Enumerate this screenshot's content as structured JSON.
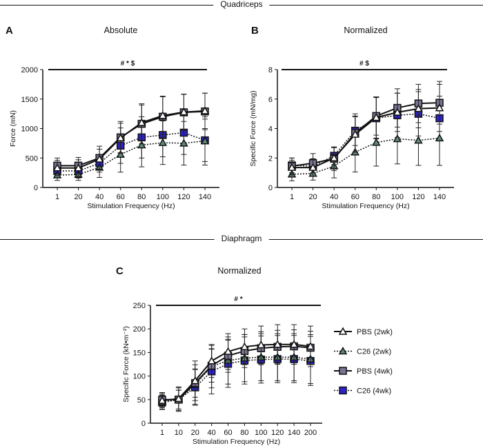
{
  "sections": {
    "top": "Quadriceps",
    "bottom": "Diaphragm"
  },
  "legend": [
    {
      "label": "PBS (2wk)",
      "marker": "triangle",
      "fill": "#ffffff",
      "dash": false
    },
    {
      "label": "C26 (2wk)",
      "marker": "triangle",
      "fill": "#5f8c7c",
      "dash": true
    },
    {
      "label": "PBS (4wk)",
      "marker": "square",
      "fill": "#7b7391",
      "dash": false
    },
    {
      "label": "C26 (4wk)",
      "marker": "square",
      "fill": "#2b22c9",
      "dash": true
    }
  ],
  "chart_data": [
    {
      "panel": "A",
      "title": "Absolute",
      "type": "line",
      "significance": "# * $",
      "xlabel": "Stimulation Frequency (Hz)",
      "ylabel": "Force (mN)",
      "categories": [
        "1",
        "20",
        "40",
        "60",
        "80",
        "100",
        "120",
        "140"
      ],
      "ylim": [
        0,
        2000
      ],
      "yticks": [
        0,
        500,
        1000,
        1500,
        2000
      ],
      "series": [
        {
          "name": "PBS (2wk)",
          "values": [
            330,
            330,
            480,
            840,
            1100,
            1220,
            1280,
            1300
          ],
          "err": [
            130,
            140,
            170,
            250,
            300,
            320,
            300,
            300
          ]
        },
        {
          "name": "C26 (2wk)",
          "values": [
            210,
            220,
            340,
            560,
            720,
            760,
            750,
            790
          ],
          "err": [
            90,
            100,
            170,
            300,
            370,
            370,
            370,
            410
          ]
        },
        {
          "name": "PBS (4wk)",
          "values": [
            370,
            370,
            500,
            850,
            1080,
            1200,
            1275,
            1290
          ],
          "err": [
            130,
            140,
            200,
            270,
            340,
            350,
            310,
            310
          ]
        },
        {
          "name": "C26 (4wk)",
          "values": [
            280,
            280,
            410,
            710,
            850,
            890,
            930,
            800
          ],
          "err": [
            110,
            120,
            150,
            300,
            350,
            370,
            370,
            360
          ]
        }
      ]
    },
    {
      "panel": "B",
      "title": "Normalized",
      "type": "line",
      "significance": "# $",
      "xlabel": "Stimulation Frequency (Hz)",
      "ylabel": "Specific Force (mN/mg)",
      "categories": [
        "1",
        "20",
        "40",
        "60",
        "80",
        "100",
        "120",
        "140"
      ],
      "ylim": [
        0,
        8
      ],
      "yticks": [
        0,
        2,
        4,
        6,
        8
      ],
      "series": [
        {
          "name": "PBS (2wk)",
          "values": [
            1.35,
            1.35,
            2.0,
            3.6,
            4.75,
            5.1,
            5.35,
            5.4
          ],
          "err": [
            0.5,
            0.6,
            0.7,
            1.2,
            1.4,
            1.3,
            1.3,
            1.6
          ]
        },
        {
          "name": "C26 (2wk)",
          "values": [
            0.9,
            0.95,
            1.45,
            2.4,
            3.05,
            3.3,
            3.2,
            3.35
          ],
          "err": [
            0.45,
            0.45,
            0.8,
            1.35,
            1.6,
            1.7,
            1.7,
            1.85
          ]
        },
        {
          "name": "PBS (4wk)",
          "values": [
            1.45,
            1.65,
            1.95,
            3.7,
            4.85,
            5.4,
            5.7,
            5.75
          ],
          "err": [
            0.55,
            0.65,
            0.8,
            1.3,
            1.3,
            1.3,
            1.3,
            1.45
          ]
        },
        {
          "name": "C26 (4wk)",
          "values": [
            1.5,
            1.45,
            2.15,
            3.85,
            4.7,
            4.9,
            5.0,
            4.7
          ],
          "err": [
            0.5,
            0.5,
            0.6,
            1.0,
            1.4,
            1.5,
            1.5,
            1.5
          ]
        }
      ]
    },
    {
      "panel": "C",
      "title": "Normalized",
      "type": "line",
      "significance": "# *",
      "xlabel": "Stimulation Frequency (Hz)",
      "ylabel": "Specific Force  (kN•m⁻²)",
      "categories": [
        "1",
        "10",
        "20",
        "40",
        "60",
        "80",
        "100",
        "120",
        "140",
        "200"
      ],
      "ylim": [
        0,
        250
      ],
      "yticks": [
        0,
        50,
        100,
        150,
        200,
        250
      ],
      "series": [
        {
          "name": "PBS (2wk)",
          "values": [
            48,
            52,
            90,
            132,
            152,
            162,
            166,
            167,
            167,
            163
          ],
          "err": [
            15,
            25,
            42,
            35,
            38,
            38,
            40,
            42,
            42,
            43
          ]
        },
        {
          "name": "C26 (2wk)",
          "values": [
            45,
            50,
            82,
            120,
            133,
            138,
            140,
            140,
            140,
            136
          ],
          "err": [
            15,
            25,
            42,
            45,
            50,
            50,
            50,
            50,
            50,
            52
          ]
        },
        {
          "name": "PBS (4wk)",
          "values": [
            50,
            50,
            85,
            122,
            143,
            153,
            159,
            162,
            163,
            160
          ],
          "err": [
            15,
            20,
            30,
            35,
            35,
            35,
            35,
            35,
            35,
            35
          ]
        },
        {
          "name": "C26 (4wk)",
          "values": [
            44,
            50,
            76,
            110,
            126,
            133,
            135,
            136,
            136,
            132
          ],
          "err": [
            15,
            20,
            38,
            48,
            50,
            50,
            50,
            50,
            50,
            52
          ]
        }
      ]
    }
  ]
}
